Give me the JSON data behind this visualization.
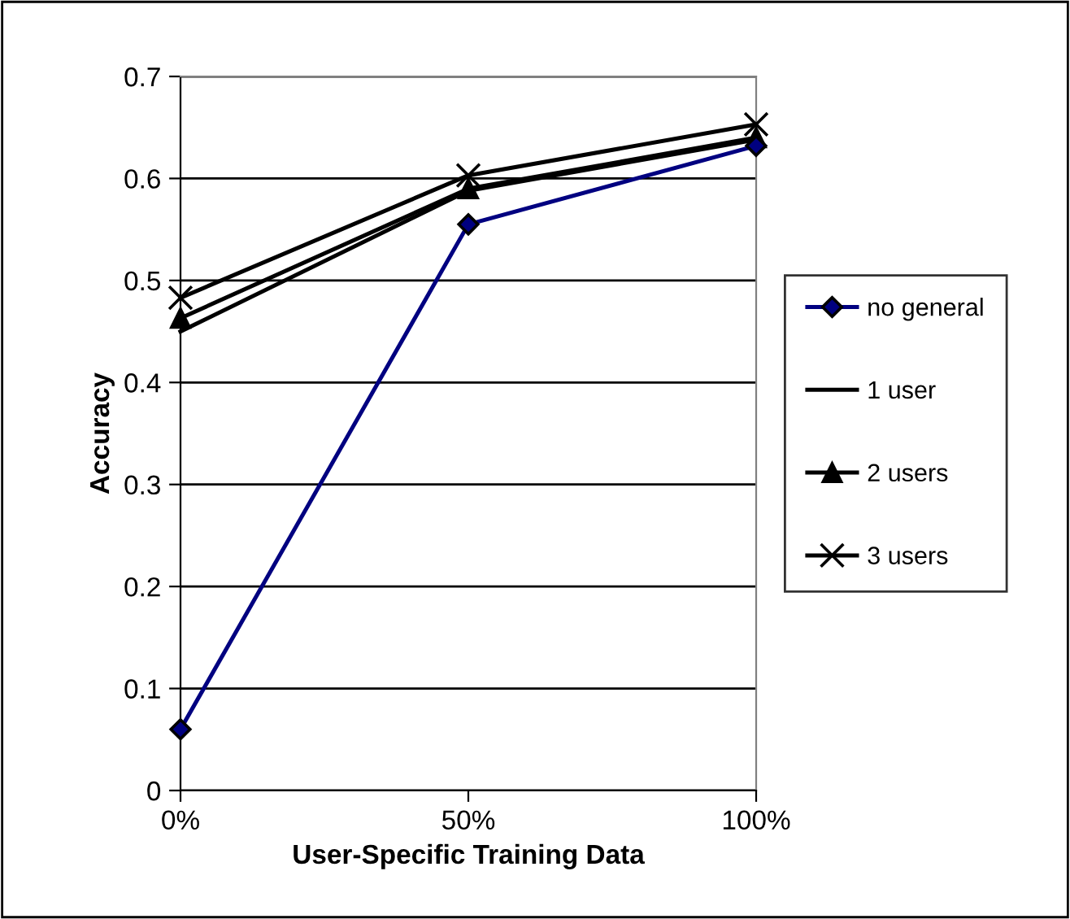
{
  "chart_data": {
    "type": "line",
    "xlabel": "User-Specific Training Data",
    "ylabel": "Accuracy",
    "categories": [
      "0%",
      "50%",
      "100%"
    ],
    "series": [
      {
        "name": "no general",
        "color": "#000080",
        "marker": "diamond",
        "values": [
          0.06,
          0.555,
          0.632
        ]
      },
      {
        "name": "1 user",
        "color": "#000000",
        "marker": "none",
        "values": [
          0.45,
          0.588,
          0.638
        ]
      },
      {
        "name": "2 users",
        "color": "#000000",
        "marker": "triangle",
        "values": [
          0.463,
          0.59,
          0.64
        ]
      },
      {
        "name": "3 users",
        "color": "#000000",
        "marker": "cross",
        "values": [
          0.483,
          0.603,
          0.653
        ]
      }
    ],
    "ylim": [
      0,
      0.7
    ],
    "yticks": [
      0,
      0.1,
      0.2,
      0.3,
      0.4,
      0.5,
      0.6,
      0.7
    ],
    "grid": "y",
    "legend": "right",
    "line_style": "solid"
  }
}
